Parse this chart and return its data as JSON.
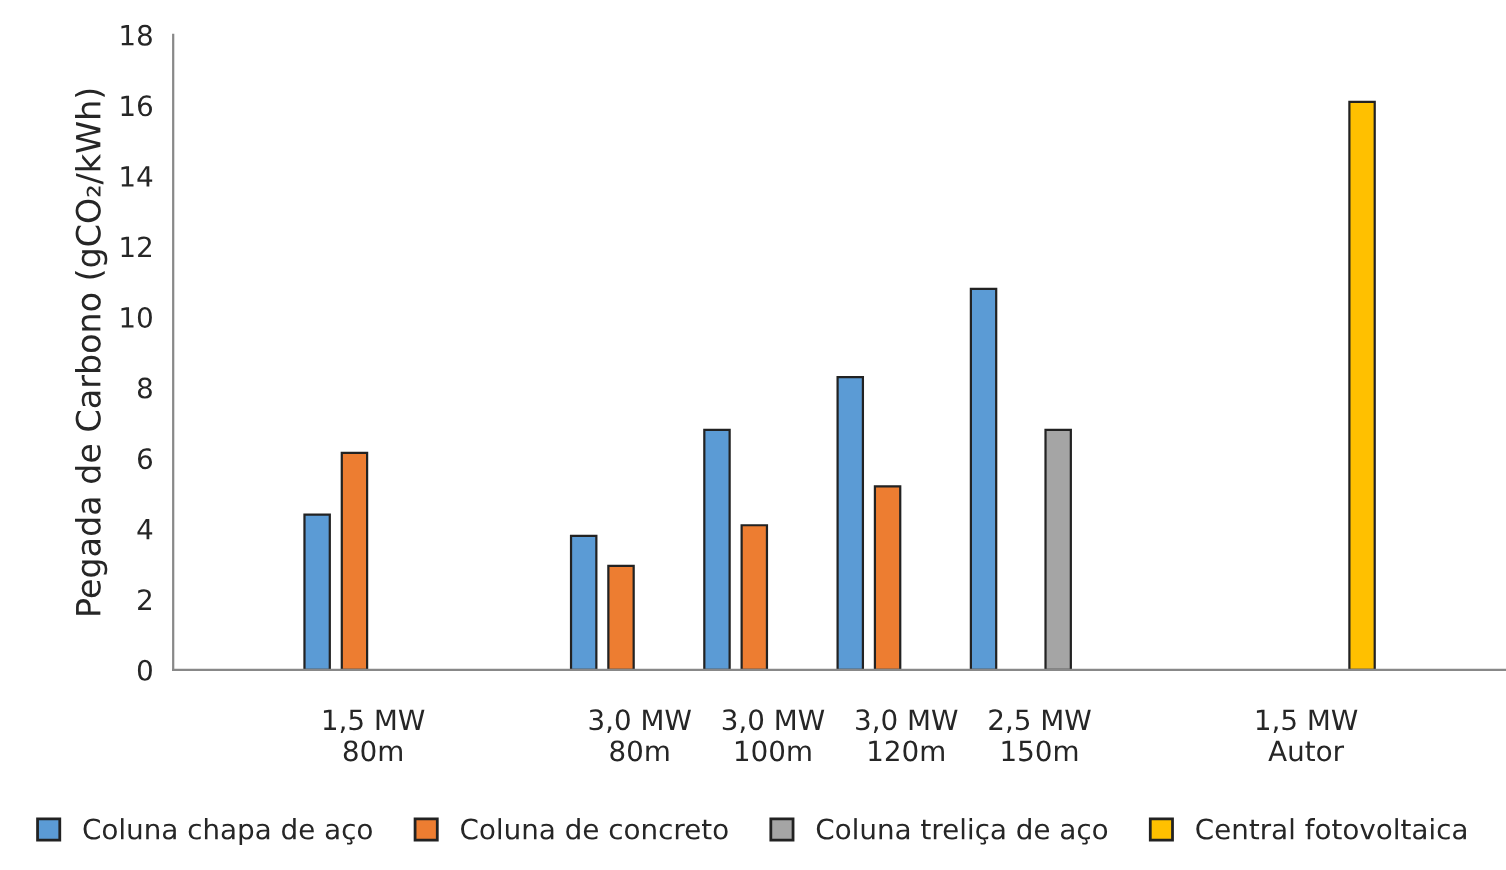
{
  "chart_data": {
    "type": "bar",
    "ylabel": "Pegada de Carbono (gCO₂/kWh)",
    "categories": [
      null,
      "1,5 MW\n80m",
      null,
      "3,0 MW\n80m",
      "3,0 MW\n100m",
      "3,0 MW\n120m",
      "2,5 MW\n150m",
      null,
      "1,5 MW\nAutor",
      null
    ],
    "series": [
      {
        "name": "Coluna chapa de aço",
        "color": "#5b9bd5",
        "values": [
          null,
          4.4,
          null,
          3.8,
          6.8,
          8.3,
          10.8,
          null,
          null,
          null
        ]
      },
      {
        "name": "Coluna de concreto",
        "color": "#ed7d31",
        "values": [
          null,
          6.15,
          null,
          2.95,
          4.1,
          5.2,
          null,
          null,
          null,
          null
        ]
      },
      {
        "name": "Coluna treliça de aço",
        "color": "#a5a5a5",
        "values": [
          null,
          null,
          null,
          null,
          null,
          null,
          6.8,
          null,
          null,
          null
        ]
      },
      {
        "name": "Central fotovoltaica",
        "color": "#ffc000",
        "values": [
          null,
          null,
          null,
          null,
          null,
          null,
          null,
          null,
          16.1,
          null
        ]
      }
    ],
    "ylim": [
      0,
      18
    ],
    "yticks": [
      0,
      2,
      4,
      6,
      8,
      10,
      12,
      14,
      16,
      18
    ],
    "grid": false,
    "legend": "bottom"
  }
}
